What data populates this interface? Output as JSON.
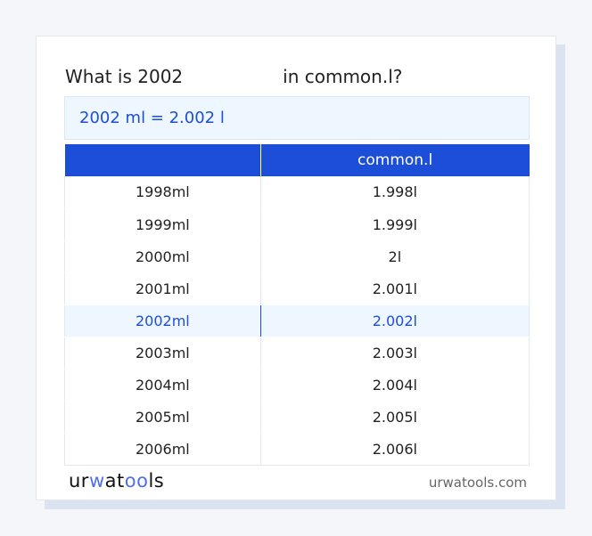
{
  "title": {
    "prefix": "What is 2002",
    "suffix": "in common.l?"
  },
  "result": "2002 ml = 2.002 l",
  "table": {
    "headers": [
      "",
      "common.l"
    ],
    "rows": [
      [
        "1998ml",
        "1.998l"
      ],
      [
        "1999ml",
        "1.999l"
      ],
      [
        "2000ml",
        "2l"
      ],
      [
        "2001ml",
        "2.001l"
      ],
      [
        "2002ml",
        "2.002l"
      ],
      [
        "2003ml",
        "2.003l"
      ],
      [
        "2004ml",
        "2.004l"
      ],
      [
        "2005ml",
        "2.005l"
      ],
      [
        "2006ml",
        "2.006l"
      ]
    ],
    "highlight_index": 4
  },
  "footer": {
    "logo": "urwatools",
    "site": "urwatools.com"
  }
}
